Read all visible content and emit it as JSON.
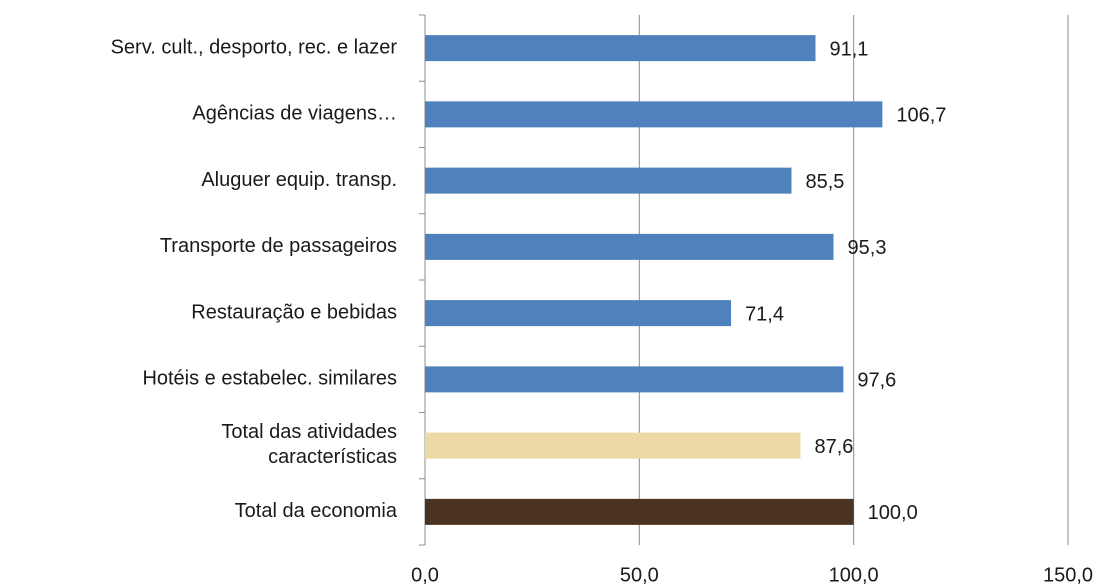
{
  "chart_data": {
    "type": "barh",
    "categories": [
      "Serv. cult., desporto, rec. e lazer",
      "Agências de viagens…",
      "Aluguer  equip. transp.",
      "Transporte de passageiros",
      "Restauração e bebidas",
      "Hotéis e estabelec. similares",
      "Total das atividades\ncaracterísticas",
      "Total da economia"
    ],
    "values": [
      91.1,
      106.7,
      85.5,
      95.3,
      71.4,
      97.6,
      87.6,
      100.0
    ],
    "value_labels": [
      "91,1",
      "106,7",
      "85,5",
      "95,3",
      "71,4",
      "97,6",
      "87,6",
      "100,0"
    ],
    "colors": [
      "#4f81bd",
      "#4f81bd",
      "#4f81bd",
      "#4f81bd",
      "#4f81bd",
      "#4f81bd",
      "#ecd9a6",
      "#4b3322"
    ],
    "xlim": [
      0,
      150
    ],
    "xticks": [
      {
        "value": 0,
        "label": "0,0"
      },
      {
        "value": 50,
        "label": "50,0"
      },
      {
        "value": 100,
        "label": "100,0"
      },
      {
        "value": 150,
        "label": "150,0"
      }
    ],
    "grid": true
  }
}
